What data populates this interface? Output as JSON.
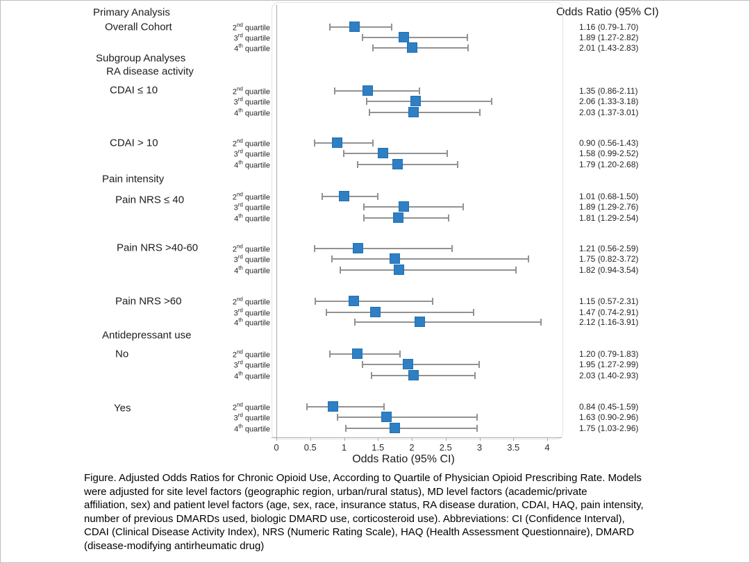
{
  "figure": {
    "right_header": "Odds Ratio (95% CI)",
    "axis": {
      "label": "Odds Ratio (95% CI)"
    },
    "side_labels": [
      {
        "id": "primary-analysis",
        "text": "Primary Analysis"
      },
      {
        "id": "overall-cohort",
        "text": "Overall Cohort"
      },
      {
        "id": "subgroup-analyses",
        "text": "Subgroup Analyses"
      },
      {
        "id": "ra-disease-activity",
        "text": "RA disease activity"
      },
      {
        "id": "cdai-le-10",
        "text": "CDAI ≤ 10"
      },
      {
        "id": "cdai-gt-10",
        "text": "CDAI > 10"
      },
      {
        "id": "pain-intensity",
        "text": "Pain intensity"
      },
      {
        "id": "pain-nrs-le-40",
        "text": "Pain NRS ≤ 40"
      },
      {
        "id": "pain-nrs-40-60",
        "text": "Pain NRS >40-60"
      },
      {
        "id": "pain-nrs-gt-60",
        "text": "Pain NRS >60"
      },
      {
        "id": "antidepressant-use",
        "text": "Antidepressant use"
      },
      {
        "id": "no",
        "text": "No"
      },
      {
        "id": "yes",
        "text": "Yes"
      }
    ],
    "caption_lines": [
      "Figure. Adjusted Odds Ratios for Chronic Opioid Use, According to Quartile of Physician Opioid Prescribing Rate. Models",
      "were adjusted for site level factors (geographic region, urban/rural status), MD level factors (academic/private",
      "affiliation, sex) and patient level factors (age, sex, race, insurance status, RA disease duration, CDAI, HAQ, pain intensity,",
      "number of previous DMARDs used, biologic DMARD use, corticosteroid use). Abbreviations: CI (Confidence Interval),",
      "CDAI (Clinical Disease Activity Index), NRS (Numeric Rating Scale), HAQ (Health Assessment Questionnaire), DMARD",
      "(disease-modifying antirheumatic drug)"
    ]
  },
  "chart_data": {
    "type": "forest",
    "title": "",
    "xlabel": "Odds Ratio (95% CI)",
    "xlim": [
      0,
      4
    ],
    "x_ticks": [
      0,
      0.5,
      1,
      1.5,
      2,
      2.5,
      3,
      3.5,
      4
    ],
    "grid": false,
    "marker_color": "#2e7fc4",
    "error_color": "#929292",
    "quartile_word": "quartile",
    "quartile_ordinals": [
      {
        "num": "2",
        "sup": "nd"
      },
      {
        "num": "3",
        "sup": "rd"
      },
      {
        "num": "4",
        "sup": "th"
      }
    ],
    "groups": [
      {
        "name": "Overall Cohort",
        "rows": [
          {
            "quartile": "2nd quartile",
            "or": 1.16,
            "lo": 0.79,
            "hi": 1.7,
            "label": "1.16 (0.79-1.70)"
          },
          {
            "quartile": "3rd quartile",
            "or": 1.89,
            "lo": 1.27,
            "hi": 2.82,
            "label": "1.89 (1.27-2.82)"
          },
          {
            "quartile": "4th quartile",
            "or": 2.01,
            "lo": 1.43,
            "hi": 2.83,
            "label": "2.01 (1.43-2.83)"
          }
        ]
      },
      {
        "name": "CDAI ≤ 10",
        "rows": [
          {
            "quartile": "2nd quartile",
            "or": 1.35,
            "lo": 0.86,
            "hi": 2.11,
            "label": "1.35 (0.86-2.11)"
          },
          {
            "quartile": "3rd quartile",
            "or": 2.06,
            "lo": 1.33,
            "hi": 3.18,
            "label": "2.06 (1.33-3.18)"
          },
          {
            "quartile": "4th quartile",
            "or": 2.03,
            "lo": 1.37,
            "hi": 3.01,
            "label": "2.03 (1.37-3.01)"
          }
        ]
      },
      {
        "name": "CDAI > 10",
        "rows": [
          {
            "quartile": "2nd quartile",
            "or": 0.9,
            "lo": 0.56,
            "hi": 1.43,
            "label": "0.90 (0.56-1.43)"
          },
          {
            "quartile": "3rd quartile",
            "or": 1.58,
            "lo": 0.99,
            "hi": 2.52,
            "label": "1.58 (0.99-2.52)"
          },
          {
            "quartile": "4th quartile",
            "or": 1.79,
            "lo": 1.2,
            "hi": 2.68,
            "label": "1.79 (1.20-2.68)"
          }
        ]
      },
      {
        "name": "Pain NRS ≤ 40",
        "rows": [
          {
            "quartile": "2nd quartile",
            "or": 1.01,
            "lo": 0.68,
            "hi": 1.5,
            "label": "1.01 (0.68-1.50)"
          },
          {
            "quartile": "3rd quartile",
            "or": 1.89,
            "lo": 1.29,
            "hi": 2.76,
            "label": "1.89 (1.29-2.76)"
          },
          {
            "quartile": "4th quartile",
            "or": 1.81,
            "lo": 1.29,
            "hi": 2.54,
            "label": "1.81 (1.29-2.54)"
          }
        ]
      },
      {
        "name": "Pain NRS >40-60",
        "rows": [
          {
            "quartile": "2nd quartile",
            "or": 1.21,
            "lo": 0.56,
            "hi": 2.59,
            "label": "1.21 (0.56-2.59)"
          },
          {
            "quartile": "3rd quartile",
            "or": 1.75,
            "lo": 0.82,
            "hi": 3.72,
            "label": "1.75 (0.82-3.72)"
          },
          {
            "quartile": "4th quartile",
            "or": 1.82,
            "lo": 0.94,
            "hi": 3.54,
            "label": "1.82 (0.94-3.54)"
          }
        ]
      },
      {
        "name": "Pain NRS >60",
        "rows": [
          {
            "quartile": "2nd quartile",
            "or": 1.15,
            "lo": 0.57,
            "hi": 2.31,
            "label": "1.15 (0.57-2.31)"
          },
          {
            "quartile": "3rd quartile",
            "or": 1.47,
            "lo": 0.74,
            "hi": 2.91,
            "label": "1.47 (0.74-2.91)"
          },
          {
            "quartile": "4th quartile",
            "or": 2.12,
            "lo": 1.16,
            "hi": 3.91,
            "label": "2.12 (1.16-3.91)"
          }
        ]
      },
      {
        "name": "No",
        "rows": [
          {
            "quartile": "2nd quartile",
            "or": 1.2,
            "lo": 0.79,
            "hi": 1.83,
            "label": "1.20 (0.79-1.83)"
          },
          {
            "quartile": "3rd quartile",
            "or": 1.95,
            "lo": 1.27,
            "hi": 2.99,
            "label": "1.95 (1.27-2.99)"
          },
          {
            "quartile": "4th quartile",
            "or": 2.03,
            "lo": 1.4,
            "hi": 2.93,
            "label": "2.03 (1.40-2.93)"
          }
        ]
      },
      {
        "name": "Yes",
        "rows": [
          {
            "quartile": "2nd quartile",
            "or": 0.84,
            "lo": 0.45,
            "hi": 1.59,
            "label": "0.84 (0.45-1.59)"
          },
          {
            "quartile": "3rd quartile",
            "or": 1.63,
            "lo": 0.9,
            "hi": 2.96,
            "label": "1.63 (0.90-2.96)"
          },
          {
            "quartile": "4th quartile",
            "or": 1.75,
            "lo": 1.03,
            "hi": 2.96,
            "label": "1.75 (1.03-2.96)"
          }
        ]
      }
    ]
  }
}
